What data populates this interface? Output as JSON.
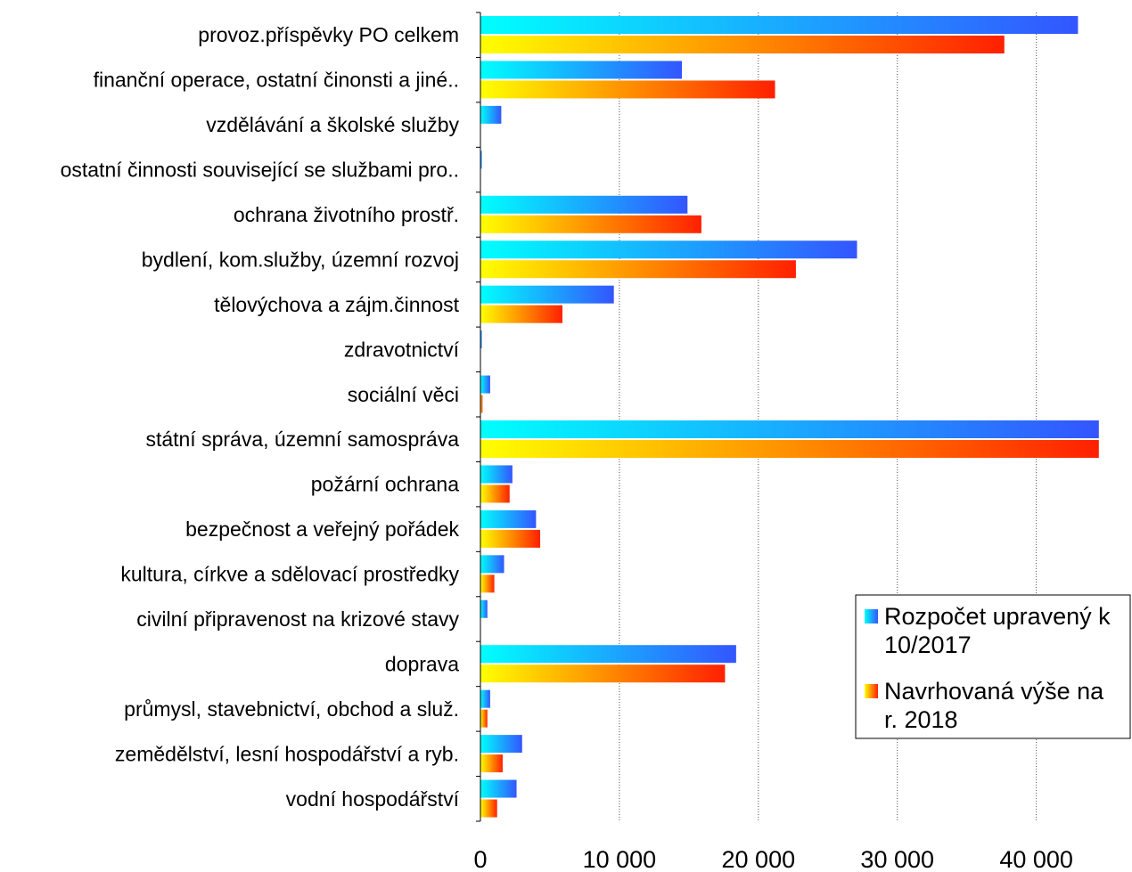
{
  "chart_data": {
    "type": "bar",
    "orientation": "horizontal",
    "categories": [
      "provoz.příspěvky PO celkem",
      "finanční operace, ostatní činonsti a jiné..",
      "vzdělávání a školské služby",
      "ostatní činnosti související se službami pro..",
      "ochrana životního prostř.",
      "bydlení, kom.služby, územní rozvoj",
      "tělovýchova a zájm.činnost",
      "zdravotnictví",
      "sociální věci",
      "státní správa, územní samospráva",
      "požární ochrana",
      "bezpečnost a veřejný pořádek",
      "kultura, církve a sdělovací prostředky",
      "civilní připravenost na krizové stavy",
      "doprava",
      "průmysl, stavebnictví, obchod a služ.",
      "zemědělství, lesní hospodářství a ryb.",
      "vodní hospodářství"
    ],
    "series": [
      {
        "name": "Rozpočet upravený k 10/2017",
        "legend_lines": [
          "Rozpočet upravený k",
          "10/2017"
        ],
        "gradient": [
          "#00ffff",
          "#3355ff"
        ],
        "values": [
          43000,
          14500,
          1500,
          100,
          14900,
          27100,
          9600,
          100,
          700,
          44500,
          2300,
          4000,
          1700,
          500,
          18400,
          700,
          3000,
          2600
        ]
      },
      {
        "name": "Navrhovaná výše na r. 2018",
        "legend_lines": [
          "Navrhovaná výše na",
          "r. 2018"
        ],
        "gradient": [
          "#ffff00",
          "#ff2000"
        ],
        "values": [
          37700,
          21200,
          0,
          0,
          15900,
          22700,
          5900,
          0,
          150,
          44500,
          2100,
          4300,
          1000,
          0,
          17600,
          500,
          1600,
          1200
        ]
      }
    ],
    "xticks": [
      "0",
      "10 000",
      "20 000",
      "30 000",
      "40 000"
    ],
    "xtick_values": [
      0,
      10000,
      20000,
      30000,
      40000
    ],
    "xlim": [
      0,
      44000
    ],
    "grid": "vertical",
    "legend_position": "bottom-right"
  }
}
